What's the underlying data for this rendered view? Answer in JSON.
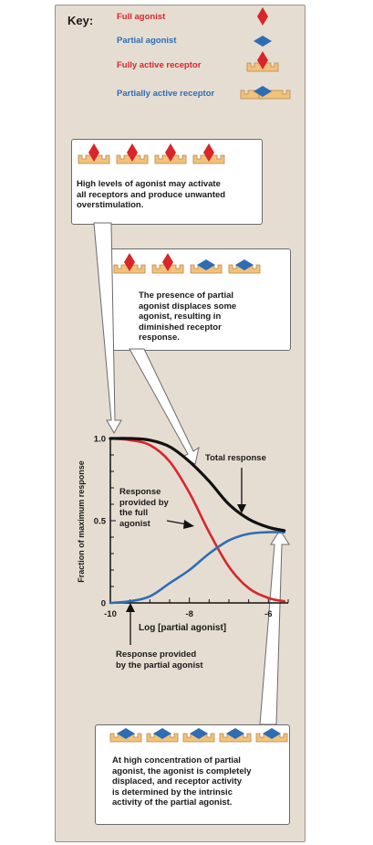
{
  "key": {
    "title": "Key:",
    "items": [
      {
        "label": "Full agonist",
        "color": "#d8262b",
        "icon": "red-diamond"
      },
      {
        "label": "Partial agonist",
        "color": "#2e6db4",
        "icon": "blue-diamond"
      },
      {
        "label": "Fully active receptor",
        "color": "#d8262b",
        "icon": "receptor-with-red-diamond"
      },
      {
        "label": "Partially active receptor",
        "color": "#2e6db4",
        "icon": "receptor-with-blue-diamond"
      }
    ]
  },
  "callouts": {
    "high_levels": "High levels of agonist may activate\nall receptors and produce unwanted\noverstimulation.",
    "presence": "The presence of partial\nagonist displaces some\nagonist, resulting in\ndiminished receptor\nresponse.",
    "high_concentration": "At high concentration of partial\nagonist, the agonist is completely\ndisplaced, and receptor activity\nis determined by the intrinsic\nactivity of the partial agonist."
  },
  "chart_data": {
    "type": "line",
    "ylabel": "Fraction of maximum response",
    "xlabel": "Log [partial agonist]",
    "x_ticks": [
      "-10",
      "-8",
      "-6"
    ],
    "y_ticks": [
      "0",
      "0.5",
      "1.0"
    ],
    "xlim": [
      -10,
      -5.5
    ],
    "ylim": [
      0,
      1.0
    ],
    "series": [
      {
        "key": "full",
        "color": "#d8262b",
        "points": [
          [
            -10,
            1.0
          ],
          [
            -9.5,
            0.99
          ],
          [
            -9,
            0.96
          ],
          [
            -8.5,
            0.86
          ],
          [
            -8,
            0.67
          ],
          [
            -7.5,
            0.43
          ],
          [
            -7,
            0.22
          ],
          [
            -6.5,
            0.09
          ],
          [
            -6,
            0.03
          ],
          [
            -5.6,
            0.01
          ]
        ]
      },
      {
        "key": "partial",
        "color": "#2e6db4",
        "points": [
          [
            -10,
            0.0
          ],
          [
            -9.5,
            0.01
          ],
          [
            -9,
            0.04
          ],
          [
            -8.5,
            0.12
          ],
          [
            -8,
            0.2
          ],
          [
            -7.5,
            0.3
          ],
          [
            -7,
            0.38
          ],
          [
            -6.5,
            0.42
          ],
          [
            -6,
            0.43
          ],
          [
            -5.6,
            0.43
          ]
        ]
      },
      {
        "key": "total",
        "color": "#111111",
        "points": [
          [
            -10,
            1.0
          ],
          [
            -9.5,
            1.0
          ],
          [
            -9,
            0.99
          ],
          [
            -8.5,
            0.95
          ],
          [
            -8,
            0.86
          ],
          [
            -7.5,
            0.74
          ],
          [
            -7,
            0.6
          ],
          [
            -6.5,
            0.51
          ],
          [
            -6,
            0.46
          ],
          [
            -5.6,
            0.44
          ]
        ]
      }
    ],
    "annotations": {
      "total": "Total response",
      "full": "Response\nprovided by\nthe full\nagonist",
      "partial": "Response provided\nby the partial agonist"
    }
  },
  "colors": {
    "panel": "#e6ddd2",
    "receptor": "#f2c27a",
    "receptor_stroke": "#b8874a",
    "red": "#d8262b",
    "blue": "#2e6db4"
  }
}
